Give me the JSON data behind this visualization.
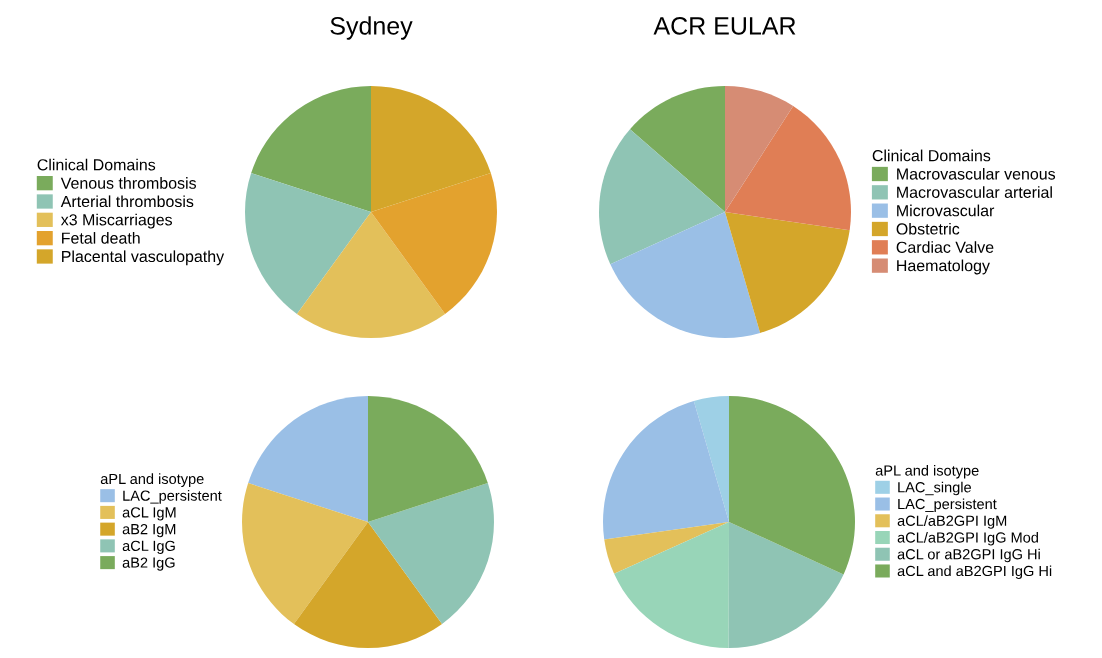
{
  "chart_data": [
    {
      "type": "pie",
      "title": "Sydney",
      "legend_title": "Clinical Domains",
      "legend": "left",
      "categories": [
        "Venous thrombosis",
        "Arterial thrombosis",
        "x3 Miscarriages",
        "Fetal death",
        "Placental vasculopathy"
      ],
      "values": [
        20,
        20,
        20,
        20,
        20
      ],
      "colors": [
        "#7aab5c",
        "#8fc4b4",
        "#e3c05a",
        "#e3a22e",
        "#d4a62a"
      ]
    },
    {
      "type": "pie",
      "title": "ACR EULAR",
      "legend_title": "Clinical Domains",
      "legend": "right",
      "categories": [
        "Macrovascular venous",
        "Macrovascular arterial",
        "Microvascular",
        "Obstetric",
        "Cardiac Valve",
        "Haematology"
      ],
      "values": [
        13.6,
        18.2,
        22.7,
        18.2,
        18.2,
        9.1
      ],
      "colors": [
        "#7aab5c",
        "#8fc4b4",
        "#9abfe6",
        "#d4a62a",
        "#e07e55",
        "#d68c74"
      ]
    },
    {
      "type": "pie",
      "legend_title": "aPL and isotype",
      "legend": "left",
      "categories": [
        "LAC_persistent",
        "aCL IgM",
        "aB2 IgM",
        "aCL IgG",
        "aB2 IgG"
      ],
      "values": [
        20,
        20,
        20,
        20,
        20
      ],
      "colors": [
        "#9abfe6",
        "#e3c05a",
        "#d4a62a",
        "#8fc4b4",
        "#7aab5c"
      ]
    },
    {
      "type": "pie",
      "legend_title": "aPL and isotype",
      "legend": "right",
      "categories": [
        "LAC_single",
        "LAC_persistent",
        "aCL/aB2GPI IgM",
        "aCL/aB2GPI IgG Mod",
        "aCL or aB2GPI IgG Hi",
        "aCL and aB2GPI IgG Hi"
      ],
      "values": [
        4.5,
        22.7,
        4.5,
        18.2,
        18.2,
        31.8
      ],
      "colors": [
        "#9ed0e6",
        "#9abfe6",
        "#e3c05a",
        "#98d5b8",
        "#8fc4b4",
        "#7aab5c"
      ]
    }
  ]
}
